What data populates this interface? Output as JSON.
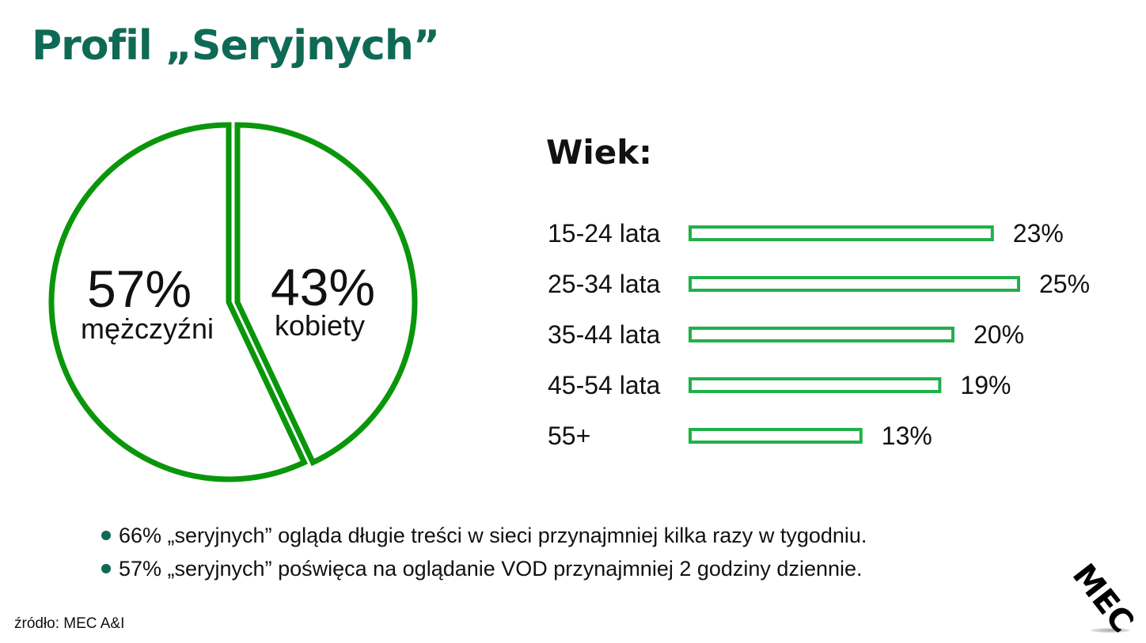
{
  "title": "Profil „Seryjnych”",
  "chart_data": [
    {
      "type": "pie",
      "slices": [
        {
          "pct": "57%",
          "label": "mężczyźni",
          "value": 57
        },
        {
          "pct": "43%",
          "label": "kobiety",
          "value": 43
        }
      ],
      "colors": {
        "stroke": "#0a960a"
      }
    },
    {
      "type": "bar",
      "title": "Wiek:",
      "categories": [
        "15-24 lata",
        "25-34 lata",
        "35-44 lata",
        "45-54 lata",
        "55+"
      ],
      "values": [
        23,
        25,
        20,
        19,
        13
      ],
      "value_labels": [
        "23%",
        "25%",
        "20%",
        "19%",
        "13%"
      ],
      "colors": {
        "stroke": "#22b04b"
      }
    }
  ],
  "bullets": [
    "66% „seryjnych” ogląda długie treści w sieci przynajmniej kilka razy w tygodniu.",
    "57% „seryjnych” poświęca na oglądanie VOD przynajmniej 2 godziny dziennie."
  ],
  "source": "źródło: MEC A&I",
  "logo": {
    "text": "MEC",
    "color": "#111111"
  }
}
